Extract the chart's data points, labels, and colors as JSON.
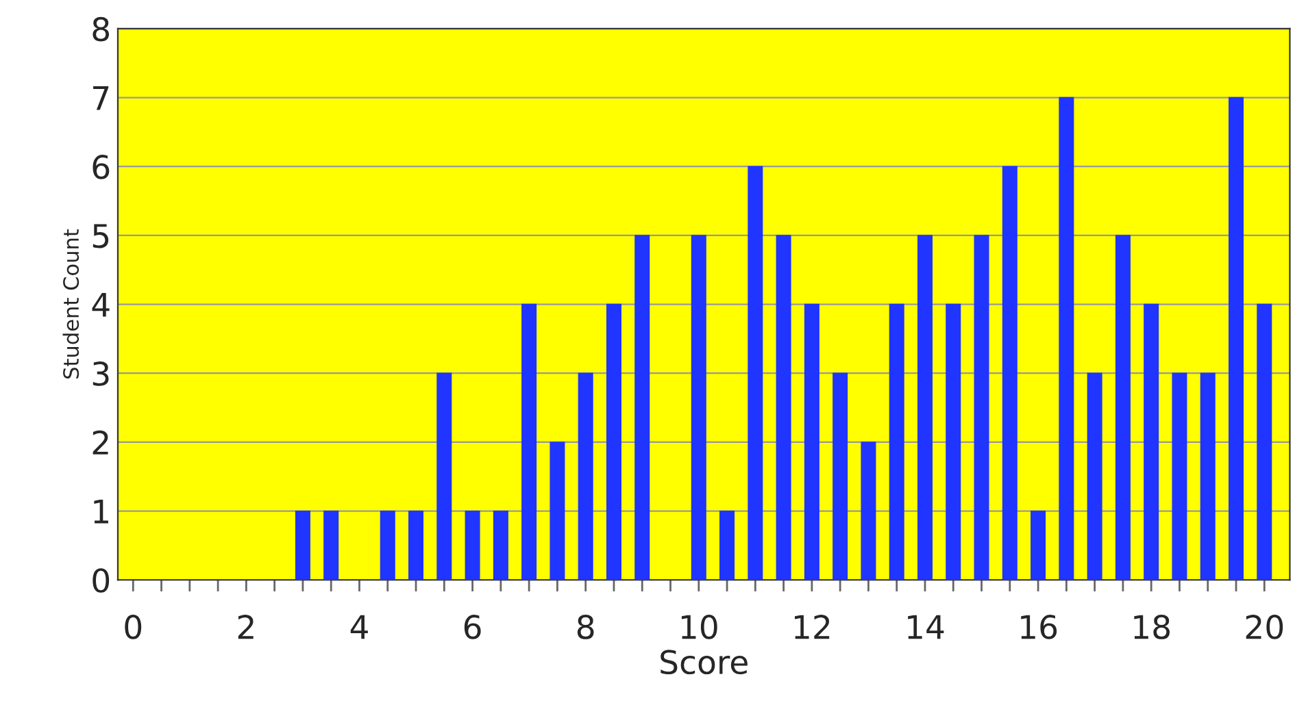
{
  "chart_data": {
    "type": "bar",
    "xlabel": "Score",
    "ylabel": "Student Count",
    "x": [
      0,
      0.5,
      1,
      1.5,
      2,
      2.5,
      3,
      3.5,
      4,
      4.5,
      5,
      5.5,
      6,
      6.5,
      7,
      7.5,
      8,
      8.5,
      9,
      9.5,
      10,
      10.5,
      11,
      11.5,
      12,
      12.5,
      13,
      13.5,
      14,
      14.5,
      15,
      15.5,
      16,
      16.5,
      17,
      17.5,
      18,
      18.5,
      19,
      19.5,
      20
    ],
    "values": [
      0,
      0,
      0,
      0,
      0,
      0,
      1,
      1,
      0,
      1,
      1,
      3,
      1,
      1,
      4,
      2,
      3,
      4,
      5,
      0,
      5,
      1,
      6,
      5,
      4,
      3,
      2,
      4,
      5,
      4,
      5,
      6,
      1,
      7,
      3,
      5,
      4,
      3,
      3,
      7,
      4
    ],
    "color": "#2035ff",
    "xlim": [
      -0.27,
      20.45
    ],
    "xticks": [
      0,
      {
        "value": 0.5,
        "label": null
      },
      2,
      {
        "value": 1.5,
        "label": null
      },
      4,
      6,
      8,
      10,
      12,
      14,
      16,
      18,
      20,
      {
        "value": 1,
        "label": null
      },
      {
        "value": 2.5,
        "label": null
      },
      {
        "value": 3,
        "label": null
      },
      {
        "value": 3.5,
        "label": null
      },
      {
        "value": 4.5,
        "label": null
      },
      {
        "value": 5,
        "label": null
      },
      {
        "value": 5.5,
        "label": null
      },
      {
        "value": 6.5,
        "label": null
      },
      {
        "value": 7,
        "label": null
      },
      {
        "value": 7.5,
        "label": null
      },
      {
        "value": 8.5,
        "label": null
      },
      {
        "value": 9,
        "label": null
      },
      {
        "value": 9.5,
        "label": null
      },
      {
        "value": 10.5,
        "label": null
      },
      {
        "value": 11,
        "label": null
      },
      {
        "value": 11.5,
        "label": null
      },
      {
        "value": 12.5,
        "label": null
      },
      {
        "value": 13,
        "label": null
      },
      {
        "value": 13.5,
        "label": null
      },
      {
        "value": 14.5,
        "label": null
      },
      {
        "value": 15,
        "label": null
      },
      {
        "value": 15.5,
        "label": null
      },
      {
        "value": 16.5,
        "label": null
      },
      {
        "value": 17,
        "label": null
      },
      {
        "value": 17.5,
        "label": null
      },
      {
        "value": 18.5,
        "label": null
      },
      {
        "value": 19,
        "label": null
      },
      {
        "value": 19.5,
        "label": null
      }
    ],
    "ylim": [
      0,
      8
    ],
    "yticks": [
      0,
      1,
      2,
      3,
      4,
      5,
      6,
      7,
      8
    ],
    "grid": "y"
  }
}
